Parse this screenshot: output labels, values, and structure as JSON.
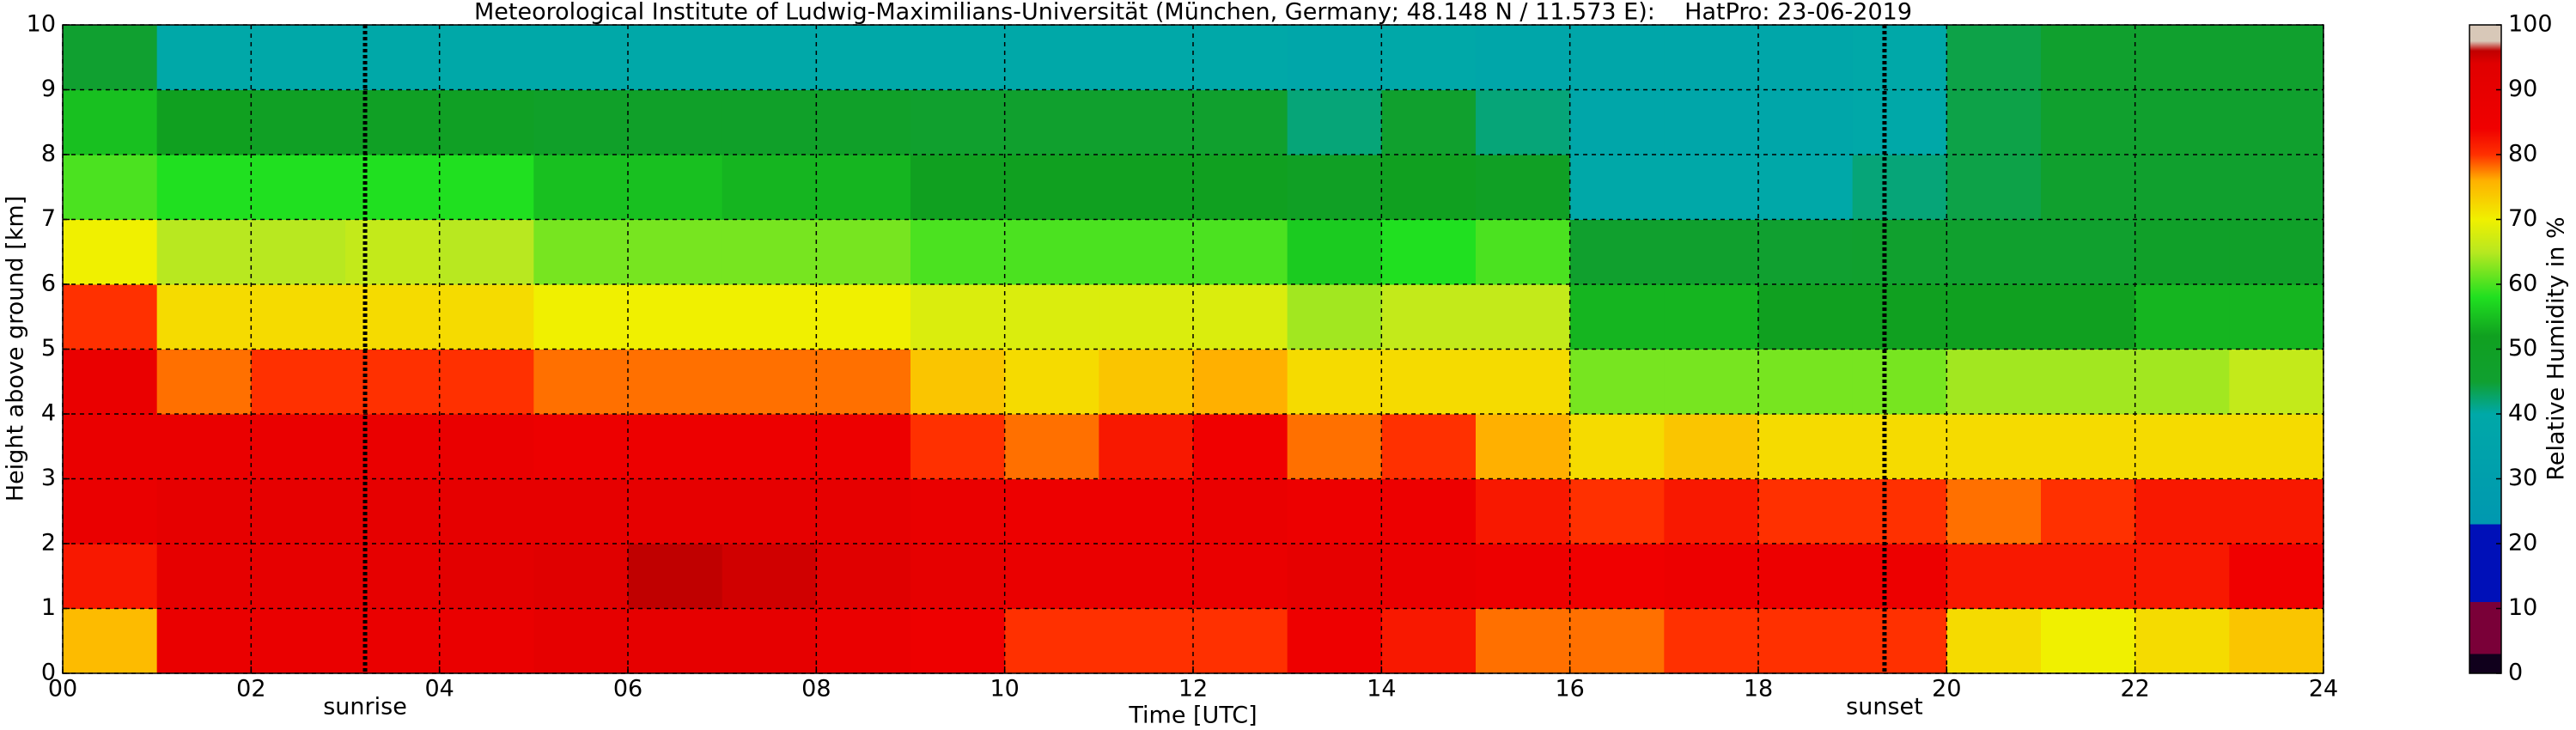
{
  "chart_data": {
    "type": "heatmap",
    "title": "Meteorological Institute of Ludwig-Maximilians-Universität (München, Germany; 48.148 N / 11.573 E):    HatPro: 23-06-2019",
    "x_label": "Time [UTC]",
    "y_label": "Height above ground [km]",
    "colorbar_label": "Relative Humidity in %",
    "x": [
      0,
      1,
      2,
      3,
      4,
      5,
      6,
      7,
      8,
      9,
      10,
      11,
      12,
      13,
      14,
      15,
      16,
      17,
      18,
      19,
      20,
      21,
      22,
      23,
      24
    ],
    "y": [
      0,
      1,
      2,
      3,
      4,
      5,
      6,
      7,
      8,
      9,
      10
    ],
    "values": [
      [
        75,
        82,
        88,
        88,
        88,
        80,
        70,
        60,
        55,
        45
      ],
      [
        88,
        90,
        90,
        88,
        78,
        72,
        65,
        58,
        52,
        40
      ],
      [
        88,
        90,
        90,
        88,
        80,
        72,
        65,
        58,
        50,
        40
      ],
      [
        88,
        90,
        90,
        88,
        80,
        72,
        66,
        58,
        50,
        40
      ],
      [
        88,
        92,
        90,
        88,
        80,
        72,
        65,
        58,
        50,
        40
      ],
      [
        90,
        94,
        90,
        86,
        78,
        70,
        62,
        55,
        48,
        40
      ],
      [
        90,
        96,
        90,
        86,
        78,
        70,
        62,
        55,
        48,
        40
      ],
      [
        90,
        95,
        90,
        86,
        78,
        70,
        62,
        54,
        48,
        40
      ],
      [
        88,
        94,
        90,
        86,
        78,
        70,
        62,
        54,
        48,
        40
      ],
      [
        85,
        90,
        88,
        80,
        74,
        68,
        60,
        52,
        46,
        40
      ],
      [
        80,
        88,
        86,
        78,
        72,
        68,
        60,
        52,
        46,
        40
      ],
      [
        80,
        88,
        86,
        82,
        74,
        68,
        60,
        52,
        46,
        40
      ],
      [
        80,
        88,
        88,
        84,
        76,
        68,
        60,
        52,
        46,
        40
      ],
      [
        85,
        90,
        86,
        78,
        72,
        64,
        56,
        50,
        42,
        38
      ],
      [
        82,
        88,
        86,
        80,
        72,
        66,
        58,
        52,
        46,
        40
      ],
      [
        78,
        86,
        82,
        76,
        72,
        66,
        60,
        50,
        42,
        38
      ],
      [
        78,
        84,
        80,
        72,
        62,
        54,
        46,
        40,
        38,
        38
      ],
      [
        80,
        86,
        82,
        74,
        62,
        54,
        46,
        40,
        38,
        38
      ],
      [
        80,
        86,
        80,
        72,
        62,
        52,
        45,
        40,
        38,
        38
      ],
      [
        80,
        86,
        80,
        72,
        62,
        52,
        46,
        42,
        40,
        40
      ],
      [
        72,
        82,
        78,
        72,
        64,
        52,
        46,
        44,
        44,
        44
      ],
      [
        70,
        82,
        80,
        72,
        64,
        52,
        46,
        46,
        46,
        46
      ],
      [
        72,
        82,
        82,
        72,
        64,
        54,
        48,
        46,
        46,
        46
      ],
      [
        74,
        84,
        82,
        72,
        66,
        54,
        48,
        46,
        46,
        46
      ]
    ],
    "xlim": [
      0,
      24
    ],
    "ylim": [
      0,
      10
    ],
    "xticks": [
      {
        "value": 0,
        "label": "00"
      },
      {
        "value": 2,
        "label": "02"
      },
      {
        "value": 4,
        "label": "04"
      },
      {
        "value": 6,
        "label": "06"
      },
      {
        "value": 8,
        "label": "08"
      },
      {
        "value": 10,
        "label": "10"
      },
      {
        "value": 12,
        "label": "12"
      },
      {
        "value": 14,
        "label": "14"
      },
      {
        "value": 16,
        "label": "16"
      },
      {
        "value": 18,
        "label": "18"
      },
      {
        "value": 20,
        "label": "20"
      },
      {
        "value": 22,
        "label": "22"
      },
      {
        "value": 24,
        "label": "24"
      }
    ],
    "yticks": [
      0,
      1,
      2,
      3,
      4,
      5,
      6,
      7,
      8,
      9,
      10
    ],
    "grid": true,
    "clim": [
      0,
      100
    ],
    "cticks": [
      0,
      10,
      20,
      30,
      40,
      50,
      60,
      70,
      80,
      90,
      100
    ],
    "colorscale": [
      [
        0,
        "#10001c"
      ],
      [
        3,
        "#10001c"
      ],
      [
        3,
        "#7a0038"
      ],
      [
        11,
        "#7a0038"
      ],
      [
        11,
        "#0010b8"
      ],
      [
        23,
        "#0010b8"
      ],
      [
        23,
        "#0098b0"
      ],
      [
        40,
        "#00a8a8"
      ],
      [
        45,
        "#10a030"
      ],
      [
        52,
        "#10a020"
      ],
      [
        58,
        "#20e020"
      ],
      [
        65,
        "#b8e820"
      ],
      [
        70,
        "#f0f000"
      ],
      [
        76,
        "#ffb000"
      ],
      [
        80,
        "#ff3000"
      ],
      [
        84,
        "#f00000"
      ],
      [
        94,
        "#e00000"
      ],
      [
        96,
        "#c00000"
      ],
      [
        97.5,
        "#d8c8b8"
      ],
      [
        100,
        "#d8c8b8"
      ]
    ],
    "annotations": [
      {
        "text": "sunrise",
        "x": 3.21
      },
      {
        "text": "sunset",
        "x": 19.34
      }
    ]
  }
}
